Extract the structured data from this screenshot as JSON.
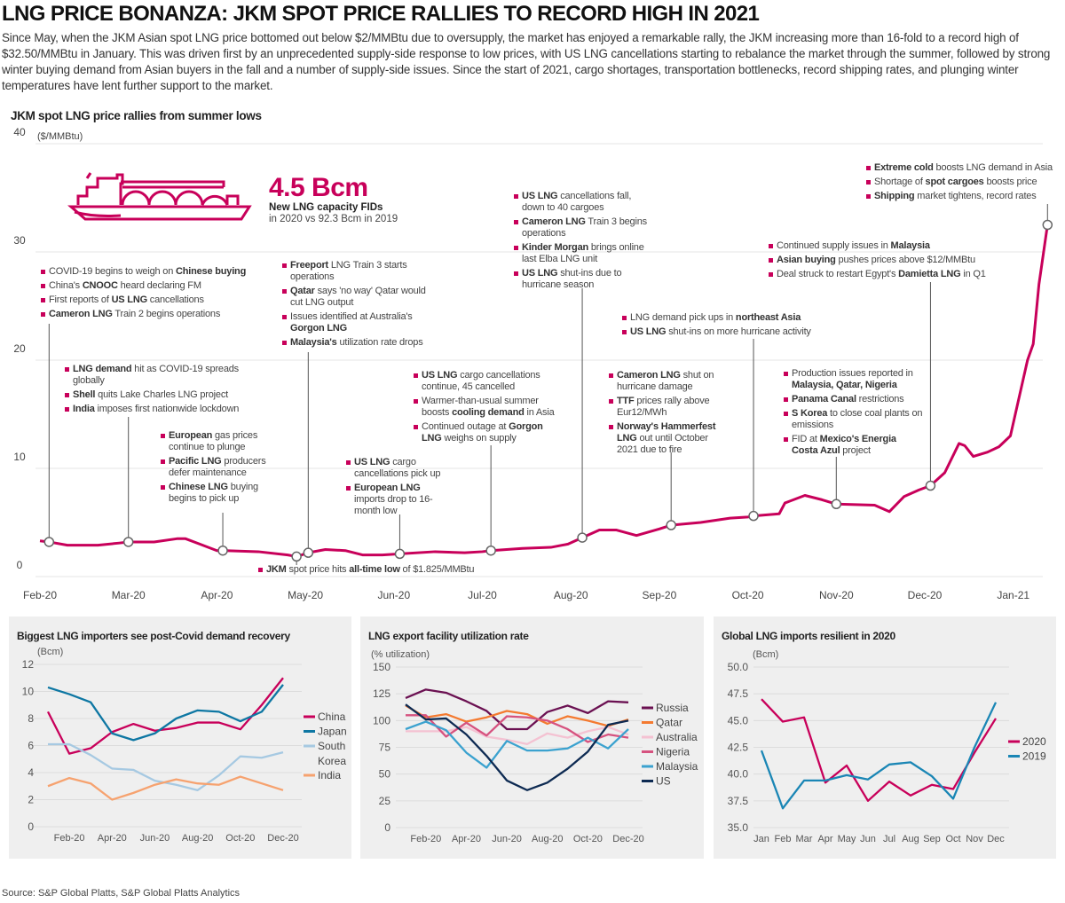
{
  "header": {
    "title": "LNG PRICE BONANZA: JKM SPOT PRICE RALLIES TO RECORD HIGH IN 2021",
    "intro": "Since May, when the JKM Asian spot LNG price bottomed out below $2/MMBtu due to oversupply, the market has enjoyed a remarkable rally, the JKM increasing more than 16-fold to a record high of $32.50/MMBtu in January. This was driven first by an unprecedented supply-side response to low prices, with US LNG cancellations starting to rebalance the market through the summer, followed by strong winter buying demand from Asian buyers in the fall and a number of supply-side issues. Since the start of 2021, cargo shortages, transportation bottlenecks, record shipping rates, and plunging winter temperatures have lent further support to the market."
  },
  "fid_callout": {
    "value": "4.5 Bcm",
    "label": "New LNG capacity FIDs",
    "sub": "in 2020 vs 92.3 Bcm in 2019",
    "icon": "lng-tanker-ship-icon"
  },
  "colors": {
    "accent": "#c8005a",
    "grid": "#e6e6e6",
    "panel_bg": "#efefef"
  },
  "chart_data": [
    {
      "type": "line",
      "title": "JKM spot LNG price rallies from summer lows",
      "ylabel": "($/MMBtu)",
      "ylim": [
        0,
        40
      ],
      "yticks": [
        "0",
        "10",
        "20",
        "30",
        "40"
      ],
      "xticks": [
        "Feb-20",
        "Mar-20",
        "Apr-20",
        "May-20",
        "Jun-20",
        "Jul-20",
        "Aug-20",
        "Sep-20",
        "Oct-20",
        "Nov-20",
        "Dec-20",
        "Jan-21"
      ],
      "grid": true,
      "color": "#c8005a",
      "series": [
        {
          "points": [
            [
              "2020-02-01",
              3.3
            ],
            [
              "2020-02-04",
              3.2
            ],
            [
              "2020-02-10",
              2.9
            ],
            [
              "2020-02-20",
              2.9
            ],
            [
              "2020-02-27",
              3.1
            ],
            [
              "2020-03-01",
              3.2
            ],
            [
              "2020-03-10",
              3.2
            ],
            [
              "2020-03-18",
              3.5
            ],
            [
              "2020-03-21",
              3.5
            ],
            [
              "2020-03-26",
              3.0
            ],
            [
              "2020-04-01",
              2.4
            ],
            [
              "2020-04-03",
              2.4
            ],
            [
              "2020-04-15",
              2.3
            ],
            [
              "2020-04-25",
              2.0
            ],
            [
              "2020-04-28",
              1.85
            ],
            [
              "2020-05-02",
              2.2
            ],
            [
              "2020-05-08",
              2.5
            ],
            [
              "2020-05-15",
              2.4
            ],
            [
              "2020-05-21",
              2.0
            ],
            [
              "2020-05-28",
              2.0
            ],
            [
              "2020-06-03",
              2.1
            ],
            [
              "2020-06-15",
              2.3
            ],
            [
              "2020-06-25",
              2.2
            ],
            [
              "2020-07-01",
              2.3
            ],
            [
              "2020-07-04",
              2.4
            ],
            [
              "2020-07-15",
              2.6
            ],
            [
              "2020-07-25",
              2.7
            ],
            [
              "2020-07-31",
              3.0
            ],
            [
              "2020-08-05",
              3.6
            ],
            [
              "2020-08-11",
              4.3
            ],
            [
              "2020-08-17",
              4.3
            ],
            [
              "2020-08-24",
              3.8
            ],
            [
              "2020-09-01",
              4.4
            ],
            [
              "2020-09-05",
              4.75
            ],
            [
              "2020-09-15",
              5.0
            ],
            [
              "2020-09-25",
              5.4
            ],
            [
              "2020-10-01",
              5.5
            ],
            [
              "2020-10-03",
              5.6
            ],
            [
              "2020-10-12",
              5.8
            ],
            [
              "2020-10-14",
              6.8
            ],
            [
              "2020-10-21",
              7.5
            ],
            [
              "2020-10-27",
              7.1
            ],
            [
              "2020-11-01",
              6.7
            ],
            [
              "2020-11-14",
              6.6
            ],
            [
              "2020-11-19",
              6.0
            ],
            [
              "2020-11-24",
              7.4
            ],
            [
              "2020-11-29",
              8.0
            ],
            [
              "2020-12-03",
              8.4
            ],
            [
              "2020-12-08",
              9.6
            ],
            [
              "2020-12-13",
              12.3
            ],
            [
              "2020-12-15",
              12.1
            ],
            [
              "2020-12-18",
              11.1
            ],
            [
              "2020-12-23",
              11.5
            ],
            [
              "2020-12-27",
              12.0
            ],
            [
              "2020-12-31",
              13.0
            ],
            [
              "2021-01-03",
              16.5
            ],
            [
              "2021-01-06",
              20.0
            ],
            [
              "2021-01-08",
              21.5
            ],
            [
              "2021-01-10",
              27.0
            ],
            [
              "2021-01-13",
              32.5
            ]
          ]
        }
      ],
      "annotations": [
        [
          [
            "COVID-19 begins to weigh on ",
            "Chinese buying"
          ],
          [
            "China's ",
            "CNOOC",
            " heard declaring FM"
          ],
          [
            "First reports of ",
            "US LNG",
            " cancellations"
          ],
          [
            "",
            "Cameron LNG",
            " Train 2 begins operations"
          ]
        ],
        [
          [
            "",
            "LNG demand",
            " hit as COVID-19 spreads globally"
          ],
          [
            "",
            "Shell",
            " quits Lake Charles LNG project"
          ],
          [
            "",
            "India",
            " imposes first nationwide lockdown"
          ]
        ],
        [
          [
            "",
            "European",
            " gas prices continue to plunge"
          ],
          [
            "",
            "Pacific LNG",
            " producers defer maintenance"
          ],
          [
            "",
            "Chinese LNG",
            " buying begins to pick up"
          ]
        ],
        [
          [
            "",
            "Freeport",
            " LNG Train 3 starts operations"
          ],
          [
            "",
            "Qatar",
            " says 'no way' Qatar would cut LNG output"
          ],
          [
            "Issues identified at Australia's ",
            "Gorgon LNG"
          ],
          [
            "",
            "Malaysia's",
            " utilization rate drops"
          ]
        ],
        [
          [
            "",
            "JKM",
            " spot price hits ",
            "all-time low",
            " of $1.825/MMBtu"
          ]
        ],
        [
          [
            "",
            "US LNG",
            " cargo cancellations pick up"
          ],
          [
            "",
            "European LNG",
            " imports drop to 16-month low"
          ]
        ],
        [
          [
            "",
            "US LNG",
            " cargo cancellations continue, 45 cancelled"
          ],
          [
            "Warmer-than-usual summer boosts ",
            "cooling demand",
            " in Asia"
          ],
          [
            "Continued outage at ",
            "Gorgon LNG",
            " weighs on supply"
          ]
        ],
        [
          [
            "",
            "US LNG",
            " cancellations fall, down to 40 cargoes"
          ],
          [
            "",
            "Cameron LNG",
            " Train 3 begins operations"
          ],
          [
            "",
            "Kinder Morgan",
            " brings online last Elba LNG unit"
          ],
          [
            "",
            "US LNG",
            " shut-ins due to hurricane season"
          ]
        ],
        [
          [
            "",
            "Cameron LNG",
            " shut on hurricane damage"
          ],
          [
            "",
            "TTF",
            " prices rally above Eur12/MWh"
          ],
          [
            "",
            "Norway's Hammerfest LNG",
            " out until October 2021 due to fire"
          ]
        ],
        [
          [
            "LNG demand pick ups in ",
            "northeast Asia"
          ],
          [
            "",
            "US LNG",
            " shut-ins on more hurricane activity"
          ]
        ],
        [
          [
            "Production issues reported in ",
            "Malaysia, Qatar, Nigeria"
          ],
          [
            "",
            "Panama Canal",
            " restrictions"
          ],
          [
            "",
            "S Korea",
            " to close coal plants on emissions"
          ],
          [
            "FID at ",
            "Mexico's Energia Costa Azul",
            " project"
          ]
        ],
        [
          [
            "Continued supply issues in ",
            "Malaysia"
          ],
          [
            "",
            "Asian buying",
            " pushes prices above $12/MMBtu"
          ],
          [
            "Deal struck to restart Egypt's ",
            "Damietta LNG",
            " in Q1"
          ]
        ],
        [
          [
            "",
            "Extreme cold",
            " boosts LNG demand in Asia"
          ],
          [
            "Shortage of ",
            "spot cargoes",
            " boosts price"
          ],
          [
            "",
            "Shipping",
            " market tightens, record rates"
          ]
        ]
      ]
    },
    {
      "type": "line",
      "title": "Biggest LNG importers see post-Covid demand recovery",
      "ylabel": "(Bcm)",
      "ylim": [
        0,
        12
      ],
      "yticks": [
        "0",
        "2",
        "4",
        "6",
        "8",
        "10",
        "12"
      ],
      "categories": [
        "Jan-20",
        "Feb-20",
        "Mar-20",
        "Apr-20",
        "May-20",
        "Jun-20",
        "Jul-20",
        "Aug-20",
        "Sep-20",
        "Oct-20",
        "Nov-20",
        "Dec-20"
      ],
      "xticks": [
        "Feb-20",
        "Apr-20",
        "Jun-20",
        "Aug-20",
        "Oct-20",
        "Dec-20"
      ],
      "legend": "right",
      "series": [
        {
          "name": "China",
          "color": "#c8005a",
          "values": [
            8.5,
            5.4,
            5.8,
            7.0,
            7.6,
            7.1,
            7.3,
            7.7,
            7.7,
            7.2,
            9.0,
            11.0
          ]
        },
        {
          "name": "Japan",
          "color": "#0e77a3",
          "values": [
            10.3,
            9.8,
            9.2,
            6.9,
            6.4,
            6.9,
            8.0,
            8.6,
            8.5,
            7.8,
            8.5,
            10.5
          ]
        },
        {
          "name": "South Korea",
          "color": "#a6c9e2",
          "values": [
            6.1,
            6.1,
            5.3,
            4.3,
            4.2,
            3.4,
            3.1,
            2.7,
            3.8,
            5.2,
            5.1,
            5.5
          ]
        },
        {
          "name": "India",
          "color": "#f6a26f",
          "values": [
            3.0,
            3.6,
            3.2,
            2.0,
            2.5,
            3.1,
            3.5,
            3.2,
            3.1,
            3.7,
            3.2,
            2.7
          ]
        }
      ]
    },
    {
      "type": "line",
      "title": "LNG export facility utilization rate",
      "ylabel": "(% utilization)",
      "ylim": [
        0,
        150
      ],
      "yticks": [
        "0",
        "25",
        "50",
        "75",
        "100",
        "125",
        "150"
      ],
      "categories": [
        "Jan-20",
        "Feb-20",
        "Mar-20",
        "Apr-20",
        "May-20",
        "Jun-20",
        "Jul-20",
        "Aug-20",
        "Sep-20",
        "Oct-20",
        "Nov-20",
        "Dec-20"
      ],
      "xticks": [
        "Feb-20",
        "Apr-20",
        "Jun-20",
        "Aug-20",
        "Oct-20",
        "Dec-20"
      ],
      "legend": "right",
      "series": [
        {
          "name": "Russia",
          "color": "#6b1152",
          "values": [
            121,
            129,
            126,
            118,
            109,
            92,
            92,
            108,
            114,
            107,
            118,
            117
          ]
        },
        {
          "name": "Qatar",
          "color": "#f47a30",
          "values": [
            114,
            103,
            106,
            99,
            103,
            109,
            106,
            97,
            104,
            100,
            95,
            101
          ]
        },
        {
          "name": "Australia",
          "color": "#f4c2d2",
          "values": [
            90,
            90,
            90,
            94,
            85,
            82,
            78,
            88,
            84,
            90,
            94,
            87
          ]
        },
        {
          "name": "Nigeria",
          "color": "#d6527f",
          "values": [
            105,
            105,
            85,
            98,
            86,
            104,
            103,
            100,
            92,
            80,
            87,
            84
          ]
        },
        {
          "name": "Malaysia",
          "color": "#3ba2cf",
          "values": [
            92,
            99,
            91,
            70,
            56,
            81,
            72,
            72,
            74,
            84,
            74,
            92
          ]
        },
        {
          "name": "US",
          "color": "#0d2a52",
          "values": [
            115,
            101,
            102,
            87,
            67,
            44,
            35,
            42,
            55,
            71,
            96,
            100
          ]
        }
      ]
    },
    {
      "type": "line",
      "title": "Global LNG imports resilient in 2020",
      "ylabel": "(Bcm)",
      "ylim": [
        35,
        50
      ],
      "yticks": [
        "35.0",
        "37.5",
        "40.0",
        "42.5",
        "45.0",
        "47.5",
        "50.0"
      ],
      "categories": [
        "Jan",
        "Feb",
        "Mar",
        "Apr",
        "May",
        "Jun",
        "Jul",
        "Aug",
        "Sep",
        "Oct",
        "Nov",
        "Dec"
      ],
      "xticks": [
        "Jan",
        "Feb",
        "Mar",
        "Apr",
        "May",
        "Jun",
        "Jul",
        "Aug",
        "Sep",
        "Oct",
        "Nov",
        "Dec"
      ],
      "legend": "right",
      "series": [
        {
          "name": "2020",
          "color": "#c8005a",
          "values": [
            47.0,
            44.9,
            45.3,
            39.2,
            40.8,
            37.5,
            39.3,
            38.0,
            39.0,
            38.6,
            42.0,
            45.2
          ]
        },
        {
          "name": "2019",
          "color": "#1a86b5",
          "values": [
            42.2,
            36.8,
            39.4,
            39.4,
            39.9,
            39.5,
            40.9,
            41.1,
            39.8,
            37.7,
            42.5,
            46.7
          ]
        }
      ]
    }
  ],
  "footer": {
    "source": "Source: S&P Global Platts, S&P Global Platts Analytics"
  }
}
